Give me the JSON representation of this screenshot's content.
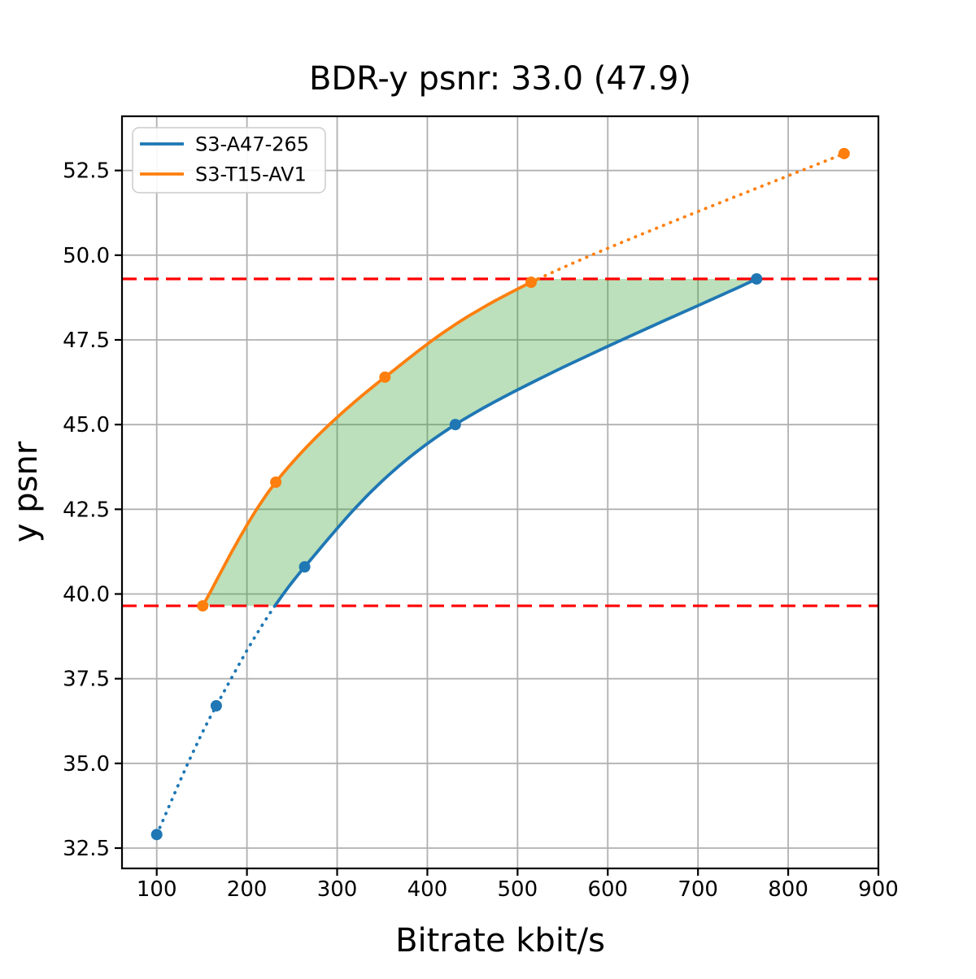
{
  "chart_data": {
    "type": "line",
    "title": "BDR-y psnr: 33.0 (47.9)",
    "xlabel": "Bitrate kbit/s",
    "ylabel": "y psnr",
    "xlim": [
      61.5,
      900
    ],
    "ylim": [
      31.9,
      54.1
    ],
    "xticks": [
      100,
      200,
      300,
      400,
      500,
      600,
      700,
      800,
      900
    ],
    "yticks": [
      32.5,
      35.0,
      37.5,
      40.0,
      42.5,
      45.0,
      47.5,
      50.0,
      52.5
    ],
    "grid": true,
    "legend_position": "upper-left",
    "series": [
      {
        "name": "S3-A47-265",
        "color": "#1f77b4",
        "x": [
          100,
          166,
          264,
          431,
          765
        ],
        "y": [
          32.9,
          36.7,
          40.8,
          45.0,
          49.3
        ],
        "dotted_region": "below_lower_threshold"
      },
      {
        "name": "S3-T15-AV1",
        "color": "#ff7f0e",
        "x": [
          151,
          232,
          353,
          515,
          862
        ],
        "y": [
          39.65,
          43.3,
          46.4,
          49.2,
          53.0
        ],
        "dotted_region": "above_upper_threshold"
      }
    ],
    "threshold_lines": {
      "color": "#ff0000",
      "style": "dashed",
      "lower_psnr": 39.65,
      "upper_psnr": 49.3
    },
    "fill_between": {
      "color": "#2ca02c",
      "opacity": 0.32,
      "from_psnr": 39.65,
      "to_psnr": 49.3
    },
    "grid_color": "#b0b0b0",
    "spine_color": "#000000"
  }
}
